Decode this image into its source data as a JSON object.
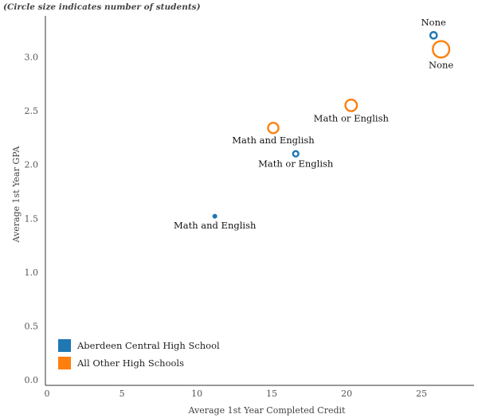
{
  "chart_data": {
    "type": "scatter",
    "subtitle": "(Circle size indicates number of students)",
    "xlabel": "Average 1st Year Completed Credit",
    "ylabel": "Average 1st Year GPA",
    "xlim": [
      -0.8,
      28.5
    ],
    "ylim": [
      -0.05,
      3.38
    ],
    "xticks": [
      0,
      5,
      10,
      15,
      20,
      25
    ],
    "yticks": [
      "0.0",
      "0.5",
      "1.0",
      "1.5",
      "2.0",
      "2.5",
      "3.0"
    ],
    "legend_position": "bottom-left",
    "series": [
      {
        "name": "Aberdeen Central High School",
        "color": "#1f77b4",
        "points": [
          {
            "x": 11.2,
            "y": 1.52,
            "size": 1,
            "label": "Math and English",
            "label_pos": "below"
          },
          {
            "x": 16.6,
            "y": 2.1,
            "size": 2,
            "label": "Math or English",
            "label_pos": "below"
          },
          {
            "x": 25.8,
            "y": 3.2,
            "size": 3,
            "label": "None",
            "label_pos": "above"
          }
        ]
      },
      {
        "name": "All Other High Schools",
        "color": "#ff7f0e",
        "points": [
          {
            "x": 15.1,
            "y": 2.34,
            "size": 8,
            "label": "Math and English",
            "label_pos": "below"
          },
          {
            "x": 20.3,
            "y": 2.55,
            "size": 10,
            "label": "Math or English",
            "label_pos": "below"
          },
          {
            "x": 26.3,
            "y": 3.07,
            "size": 21,
            "label": "None",
            "label_pos": "below"
          }
        ]
      }
    ]
  }
}
